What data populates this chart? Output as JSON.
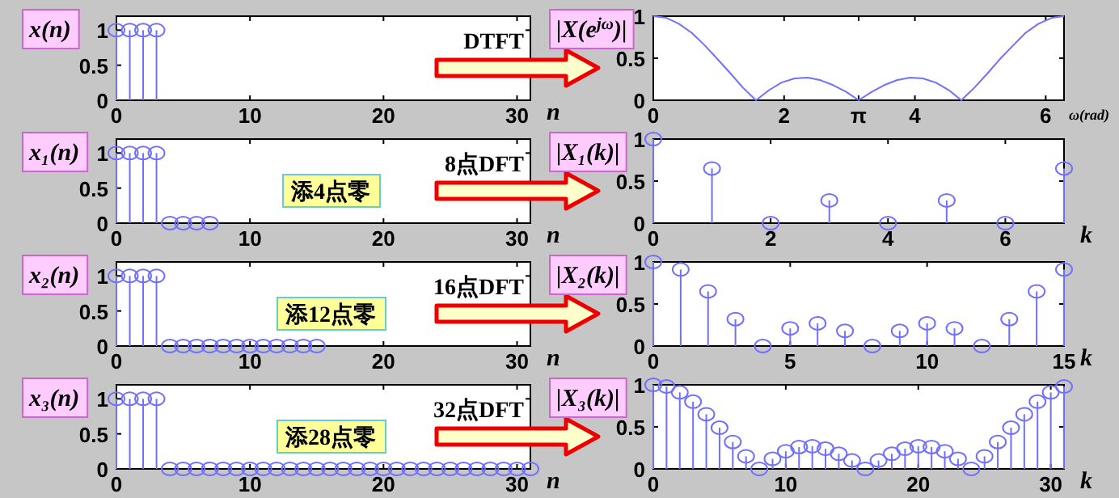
{
  "chart_data": [
    {
      "type": "lollipop",
      "ylabel": "x(n)",
      "xlabel": "n",
      "marker": "circle",
      "color": "#7070ff",
      "x": [
        0,
        1,
        2,
        3
      ],
      "values": [
        1,
        1,
        1,
        1
      ],
      "xlim": [
        0,
        31
      ],
      "ylim": [
        0,
        1.2
      ],
      "xticks": [
        0,
        10,
        20,
        30
      ],
      "yticks": [
        0,
        0.5,
        1
      ],
      "annotations": [
        "DTFT"
      ]
    },
    {
      "type": "line",
      "ylabel": "|X(e$^{jω}$)|",
      "xlabel": "ω(rad)",
      "marker": "none",
      "color": "#7070ff",
      "x": [
        0,
        0.2,
        0.39,
        0.59,
        0.79,
        0.98,
        1.18,
        1.37,
        1.57,
        1.77,
        1.96,
        2.16,
        2.36,
        2.55,
        2.75,
        2.95,
        3.14,
        3.34,
        3.53,
        3.73,
        3.93,
        4.12,
        4.32,
        4.52,
        4.71,
        4.91,
        5.11,
        5.3,
        5.5,
        5.69,
        5.89,
        6.09,
        6.28
      ],
      "values": [
        1,
        0.98,
        0.91,
        0.8,
        0.65,
        0.49,
        0.32,
        0.15,
        0,
        0.12,
        0.21,
        0.26,
        0.27,
        0.24,
        0.18,
        0.1,
        0,
        0.1,
        0.18,
        0.24,
        0.27,
        0.26,
        0.21,
        0.12,
        0,
        0.15,
        0.32,
        0.49,
        0.65,
        0.8,
        0.91,
        0.98,
        1
      ],
      "xlim": [
        0,
        6.28
      ],
      "ylim": [
        0,
        1
      ],
      "xticks": [
        0,
        2,
        {
          "value": 3.14,
          "label": "π"
        },
        4,
        6
      ],
      "yticks": [
        0,
        0.5,
        1
      ]
    },
    {
      "type": "lollipop",
      "ylabel": "x₁(n)",
      "xlabel": "n",
      "marker": "circle",
      "color": "#7070ff",
      "x": [
        0,
        1,
        2,
        3,
        4,
        5,
        6,
        7
      ],
      "values": [
        1,
        1,
        1,
        1,
        0,
        0,
        0,
        0
      ],
      "xlim": [
        0,
        31
      ],
      "ylim": [
        0,
        1.2
      ],
      "xticks": [
        0,
        10,
        20,
        30
      ],
      "yticks": [
        0,
        0.5,
        1
      ],
      "annotations": [
        "添4点零",
        "8点DFT"
      ]
    },
    {
      "type": "lollipop",
      "ylabel": "|X₁(k)|",
      "xlabel": "k",
      "marker": "circle",
      "color": "#7070ff",
      "x": [
        0,
        1,
        2,
        3,
        4,
        5,
        6,
        7
      ],
      "values": [
        1,
        0.65,
        0,
        0.27,
        0,
        0.27,
        0,
        0.65
      ],
      "xlim": [
        0,
        7
      ],
      "ylim": [
        0,
        1
      ],
      "xticks": [
        0,
        2,
        4,
        6
      ],
      "yticks": [
        0,
        0.5,
        1
      ]
    },
    {
      "type": "lollipop",
      "ylabel": "x₂(n)",
      "xlabel": "n",
      "marker": "circle",
      "color": "#7070ff",
      "x": [
        0,
        1,
        2,
        3,
        4,
        5,
        6,
        7,
        8,
        9,
        10,
        11,
        12,
        13,
        14,
        15
      ],
      "values": [
        1,
        1,
        1,
        1,
        0,
        0,
        0,
        0,
        0,
        0,
        0,
        0,
        0,
        0,
        0,
        0
      ],
      "xlim": [
        0,
        31
      ],
      "ylim": [
        0,
        1.2
      ],
      "xticks": [
        0,
        10,
        20,
        30
      ],
      "yticks": [
        0,
        0.5,
        1
      ],
      "annotations": [
        "添12点零",
        "16点DFT"
      ]
    },
    {
      "type": "lollipop",
      "ylabel": "|X₂(k)|",
      "xlabel": "k",
      "marker": "circle",
      "color": "#7070ff",
      "x": [
        0,
        1,
        2,
        3,
        4,
        5,
        6,
        7,
        8,
        9,
        10,
        11,
        12,
        13,
        14,
        15
      ],
      "values": [
        1,
        0.91,
        0.65,
        0.32,
        0,
        0.21,
        0.27,
        0.18,
        0,
        0.18,
        0.27,
        0.21,
        0,
        0.32,
        0.65,
        0.91
      ],
      "xlim": [
        0,
        15
      ],
      "ylim": [
        0,
        1
      ],
      "xticks": [
        0,
        5,
        10,
        15
      ],
      "yticks": [
        0,
        0.5,
        1
      ]
    },
    {
      "type": "lollipop",
      "ylabel": "x₃(n)",
      "xlabel": "n",
      "marker": "circle",
      "color": "#7070ff",
      "x": [
        0,
        1,
        2,
        3,
        4,
        5,
        6,
        7,
        8,
        9,
        10,
        11,
        12,
        13,
        14,
        15,
        16,
        17,
        18,
        19,
        20,
        21,
        22,
        23,
        24,
        25,
        26,
        27,
        28,
        29,
        30,
        31
      ],
      "values": [
        1,
        1,
        1,
        1,
        0,
        0,
        0,
        0,
        0,
        0,
        0,
        0,
        0,
        0,
        0,
        0,
        0,
        0,
        0,
        0,
        0,
        0,
        0,
        0,
        0,
        0,
        0,
        0,
        0,
        0,
        0,
        0
      ],
      "xlim": [
        0,
        31
      ],
      "ylim": [
        0,
        1.2
      ],
      "xticks": [
        0,
        10,
        20,
        30
      ],
      "yticks": [
        0,
        0.5,
        1
      ],
      "annotations": [
        "添28点零",
        "32点DFT"
      ]
    },
    {
      "type": "lollipop",
      "ylabel": "|X₃(k)|",
      "xlabel": "k",
      "marker": "circle",
      "color": "#7070ff",
      "x": [
        0,
        1,
        2,
        3,
        4,
        5,
        6,
        7,
        8,
        9,
        10,
        11,
        12,
        13,
        14,
        15,
        16,
        17,
        18,
        19,
        20,
        21,
        22,
        23,
        24,
        25,
        26,
        27,
        28,
        29,
        30,
        31
      ],
      "values": [
        1,
        0.98,
        0.91,
        0.8,
        0.65,
        0.49,
        0.32,
        0.15,
        0,
        0.12,
        0.21,
        0.26,
        0.27,
        0.24,
        0.18,
        0.1,
        0,
        0.1,
        0.18,
        0.24,
        0.27,
        0.26,
        0.21,
        0.12,
        0,
        0.15,
        0.32,
        0.49,
        0.65,
        0.8,
        0.91,
        0.98
      ],
      "xlim": [
        0,
        31
      ],
      "ylim": [
        0,
        1
      ],
      "xticks": [
        0,
        10,
        20,
        30
      ],
      "yticks": [
        0,
        0.5,
        1
      ]
    }
  ]
}
